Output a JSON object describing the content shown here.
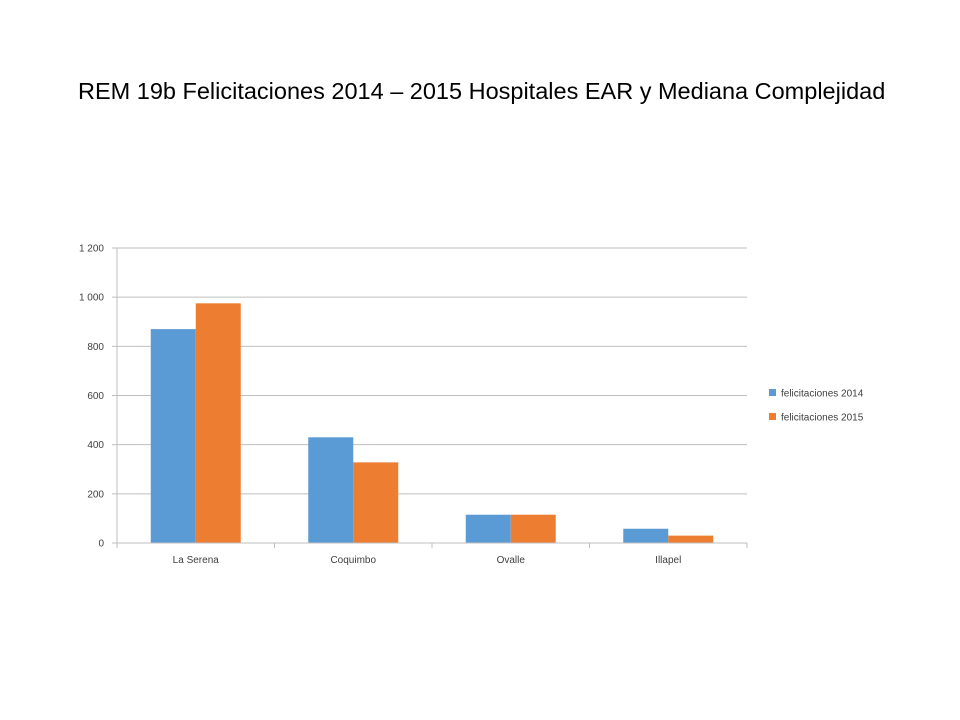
{
  "slide": {
    "title": "REM 19b Felicitaciones 2014 – 2015 Hospitales EAR y Mediana Complejidad"
  },
  "chart_data": {
    "type": "bar",
    "categories": [
      "La Serena",
      "Coquimbo",
      "Ovalle",
      "Illapel"
    ],
    "series": [
      {
        "name": "felicitaciones 2014",
        "values": [
          870,
          430,
          115,
          58
        ],
        "color": "#5b9bd5"
      },
      {
        "name": "felicitaciones 2015",
        "values": [
          975,
          328,
          115,
          30
        ],
        "color": "#ed7d31"
      }
    ],
    "ylim": [
      0,
      1200
    ],
    "yticks": [
      0,
      200,
      400,
      600,
      800,
      1000,
      1200
    ],
    "ytick_labels": [
      "0",
      "200",
      "400",
      "600",
      "800",
      "1 000",
      "1 200"
    ],
    "grid": true,
    "legend_position": "right",
    "title": "",
    "xlabel": "",
    "ylabel": ""
  }
}
